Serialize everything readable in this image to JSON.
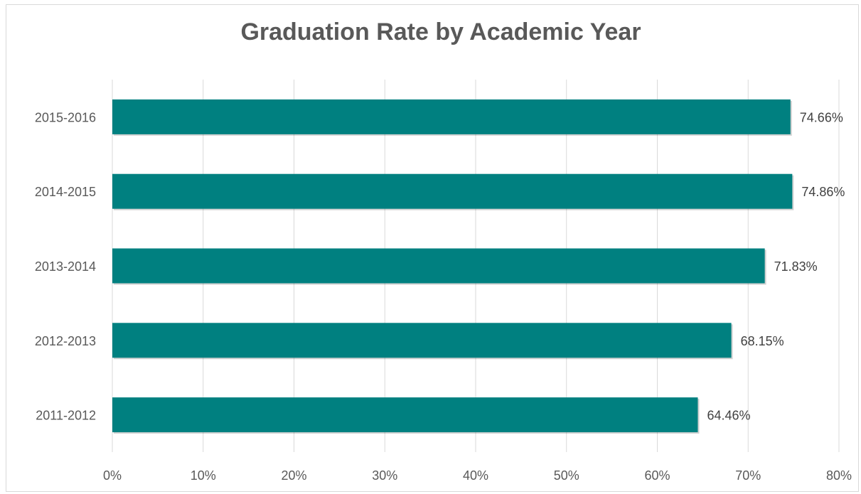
{
  "chart_data": {
    "type": "bar",
    "orientation": "horizontal",
    "title": "Graduation Rate by Academic Year",
    "xlabel": "",
    "ylabel": "",
    "categories": [
      "2015-2016",
      "2014-2015",
      "2013-2014",
      "2012-2013",
      "2011-2012"
    ],
    "values": [
      74.66,
      74.86,
      71.83,
      68.15,
      64.46
    ],
    "data_labels": [
      "74.66%",
      "74.86%",
      "71.83%",
      "68.15%",
      "64.46%"
    ],
    "xlim": [
      0,
      80
    ],
    "x_ticks": [
      0,
      10,
      20,
      30,
      40,
      50,
      60,
      70,
      80
    ],
    "x_tick_labels": [
      "0%",
      "10%",
      "20%",
      "30%",
      "40%",
      "50%",
      "60%",
      "70%",
      "80%"
    ],
    "grid": true,
    "legend": "none",
    "bar_color": "#008080",
    "gridline_color": "#d9d9d9",
    "text_color": "#595959"
  }
}
